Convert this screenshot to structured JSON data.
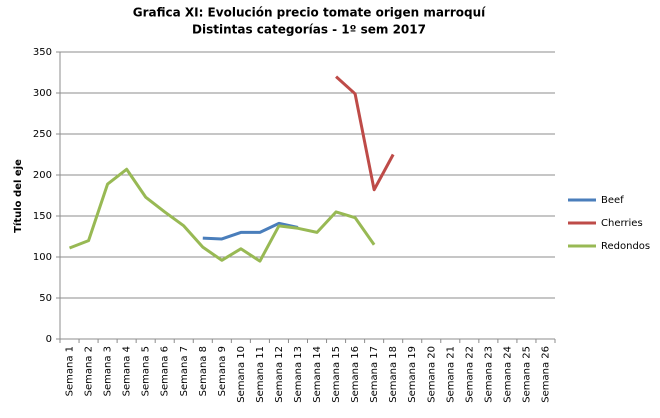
{
  "chart_data": {
    "type": "line",
    "title": "Grafica XI: Evolución precio tomate origen marroquí",
    "subtitle": "Distintas categorías - 1º sem 2017",
    "y_label": "Título del eje",
    "categories": [
      "Semana 1",
      "Semana 2",
      "Semana 3",
      "Semana 4",
      "Semana 5",
      "Semana 6",
      "Semana 7",
      "Semana 8",
      "Semana 9",
      "Semana 10",
      "Semana 11",
      "Semana 12",
      "Semana 13",
      "Semana 14",
      "Semana 15",
      "Semana 16",
      "Semana 17",
      "Semana 18",
      "Semana 19",
      "Semana 20",
      "Semana 21",
      "Semana 22",
      "Semana 23",
      "Semana 24",
      "Semana 25",
      "Semana 26"
    ],
    "series": [
      {
        "name": "Beef",
        "color": "#4a7ebb",
        "values": [
          null,
          null,
          null,
          null,
          null,
          null,
          null,
          123,
          122,
          130,
          130,
          141,
          136,
          null,
          null,
          null,
          null,
          null,
          null,
          null,
          null,
          null,
          null,
          null,
          null,
          null
        ]
      },
      {
        "name": "Cherries",
        "color": "#be4b48",
        "values": [
          null,
          null,
          null,
          null,
          null,
          null,
          null,
          null,
          null,
          null,
          null,
          null,
          null,
          null,
          320,
          299,
          182,
          225,
          null,
          null,
          null,
          null,
          null,
          null,
          null,
          null
        ]
      },
      {
        "name": "Redondos",
        "color": "#98b954",
        "values": [
          111,
          120,
          189,
          207,
          173,
          155,
          138,
          112,
          96,
          110,
          95,
          138,
          135,
          130,
          155,
          148,
          115,
          null,
          null,
          null,
          null,
          null,
          null,
          null,
          null,
          null
        ]
      }
    ],
    "ylim": [
      0,
      350
    ],
    "yticks": [
      0,
      50,
      100,
      150,
      200,
      250,
      300,
      350
    ],
    "grid": true,
    "legend": "right"
  }
}
